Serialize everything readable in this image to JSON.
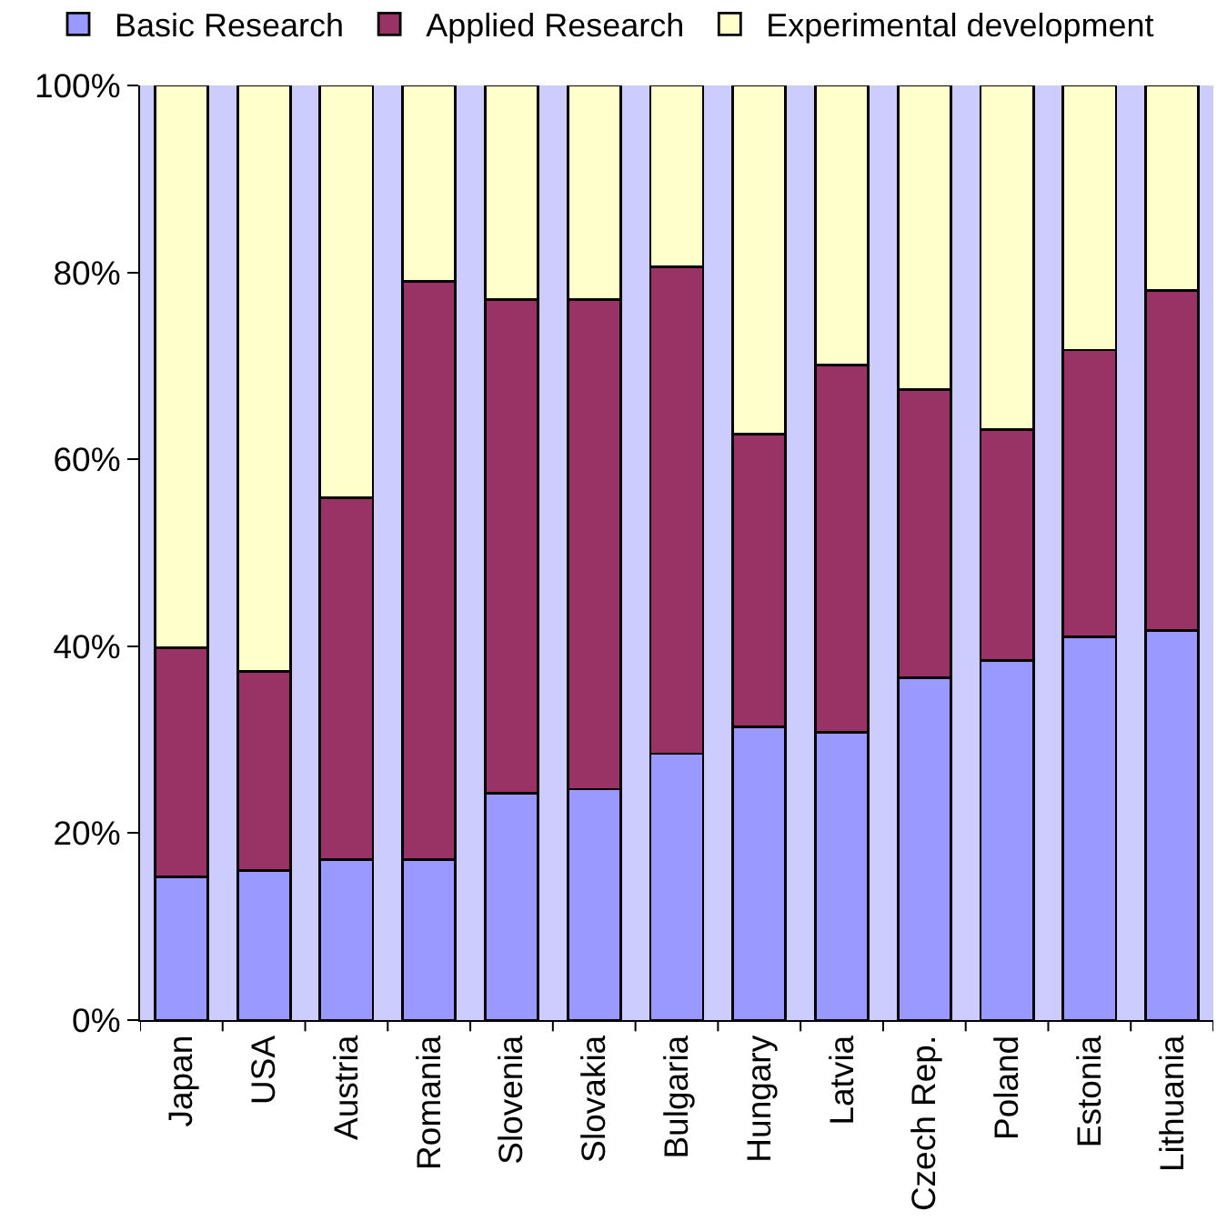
{
  "chart_data": {
    "type": "bar",
    "stacked": true,
    "categories": [
      "Japan",
      "USA",
      "Austria",
      "Romania",
      "Slovenia",
      "Slovakia",
      "Bulgaria",
      "Hungary",
      "Latvia",
      "Czech Rep.",
      "Poland",
      "Estonia",
      "Lithuania"
    ],
    "series": [
      {
        "name": "Basic Research",
        "color": "#9999ff",
        "values": [
          15.3,
          16.0,
          17.2,
          17.2,
          24.3,
          24.7,
          28.5,
          31.4,
          30.8,
          36.6,
          38.5,
          41.0,
          41.7
        ]
      },
      {
        "name": "Applied Research",
        "color": "#993366",
        "values": [
          24.5,
          21.3,
          38.7,
          61.8,
          52.8,
          52.4,
          52.1,
          31.3,
          39.3,
          30.9,
          24.7,
          30.7,
          36.4
        ]
      },
      {
        "name": "Experimental development",
        "color": "#ffffcc",
        "values": [
          60.2,
          62.7,
          44.1,
          21.0,
          22.9,
          22.9,
          19.4,
          37.3,
          29.9,
          32.5,
          36.8,
          28.3,
          21.9
        ]
      }
    ],
    "ylim": [
      0,
      100
    ],
    "yticks": [
      {
        "value": 0,
        "label": "0%"
      },
      {
        "value": 20,
        "label": "20%"
      },
      {
        "value": 40,
        "label": "40%"
      },
      {
        "value": 60,
        "label": "60%"
      },
      {
        "value": 80,
        "label": "80%"
      },
      {
        "value": 100,
        "label": "100%"
      }
    ],
    "grid": false,
    "legend": "top"
  }
}
